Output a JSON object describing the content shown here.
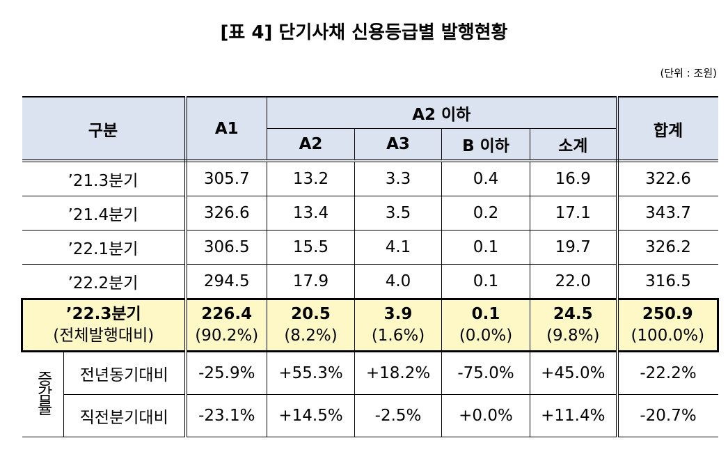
{
  "title": "[표 4] 단기사채 신용등급별 발행현황",
  "unit": "(단위 : 조원)",
  "table": {
    "header": {
      "category": "구분",
      "a1": "A1",
      "a2_below": "A2 이하",
      "a2": "A2",
      "a3": "A3",
      "b_below": "B 이하",
      "subtotal": "소계",
      "total": "합계"
    },
    "rows": [
      [
        "’21.3분기",
        "305.7",
        "13.2",
        "3.3",
        "0.4",
        "16.9",
        "322.6"
      ],
      [
        "’21.4분기",
        "326.6",
        "13.4",
        "3.5",
        "0.2",
        "17.1",
        "343.7"
      ],
      [
        "’22.1분기",
        "306.5",
        "15.5",
        "4.1",
        "0.1",
        "19.7",
        "326.2"
      ],
      [
        "’22.2분기",
        "294.5",
        "17.9",
        "4.0",
        "0.1",
        "22.0",
        "316.5"
      ]
    ],
    "highlight": {
      "label": "’22.3분기",
      "sublabel": "(전체발행대비)",
      "values": [
        "226.4",
        "20.5",
        "3.9",
        "0.1",
        "24.5",
        "250.9"
      ],
      "shares": [
        "(90.2%)",
        "(8.2%)",
        "(1.6%)",
        "(0.0%)",
        "(9.8%)",
        "(100.0%)"
      ]
    },
    "change": {
      "label": "증감률",
      "rows": [
        [
          "전년동기대비",
          "-25.9%",
          "+55.3%",
          "+18.2%",
          "-75.0%",
          "+45.0%",
          "-22.2%"
        ],
        [
          "직전분기대비",
          "-23.1%",
          "+14.5%",
          "-2.5%",
          "+0.0%",
          "+11.4%",
          "-20.7%"
        ]
      ]
    }
  }
}
